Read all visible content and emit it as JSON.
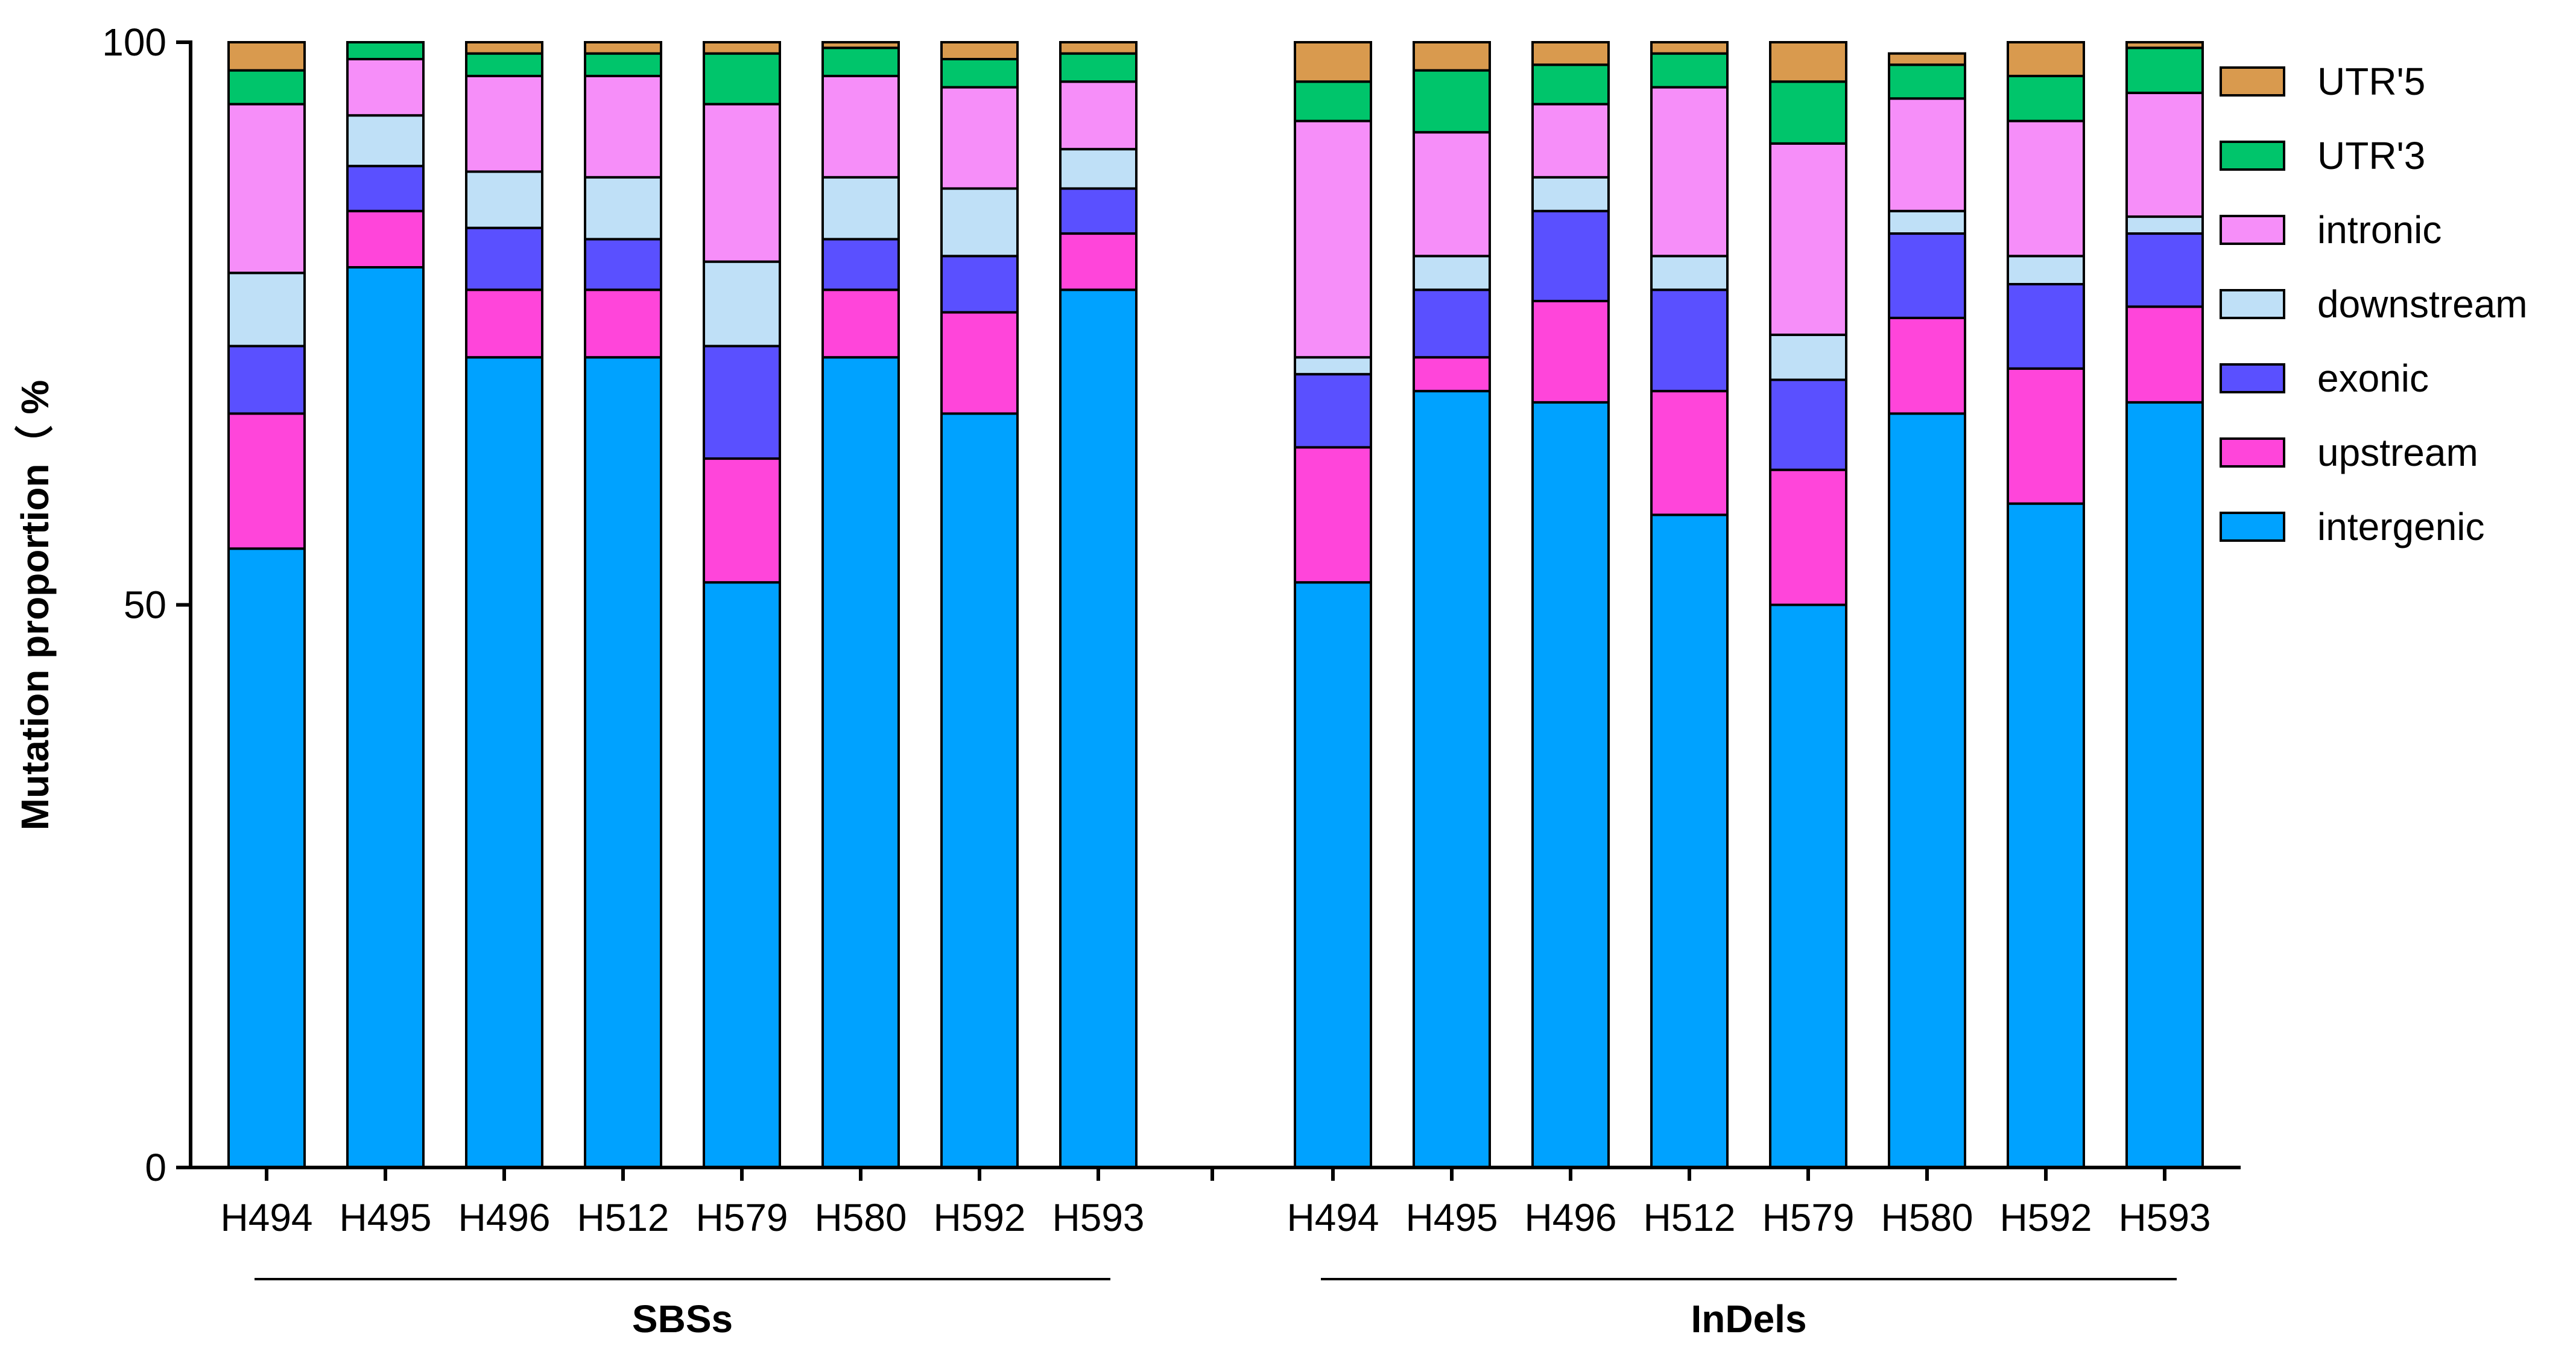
{
  "chart_data": {
    "type": "bar",
    "stacked": true,
    "ylabel": "Mutation proportion（ %",
    "ylim": [
      0,
      100
    ],
    "yticks": [
      0,
      50,
      100
    ],
    "legend_position": "right",
    "series_order": [
      "intergenic",
      "upstream",
      "exonic",
      "downstream",
      "intronic",
      "UTR'3",
      "UTR'5"
    ],
    "legend_order": [
      "UTR'5",
      "UTR'3",
      "intronic",
      "downstream",
      "exonic",
      "upstream",
      "intergenic"
    ],
    "colors": {
      "intergenic": "#00A2FF",
      "upstream": "#FF45DA",
      "exonic": "#5A50FF",
      "downstream": "#BFE0F7",
      "intronic": "#F68EF9",
      "UTR'3": "#00C56B",
      "UTR'5": "#D99A4E"
    },
    "groups": [
      {
        "label": "SBSs",
        "samples": [
          {
            "name": "H494",
            "values": [
              55,
              12,
              6,
              6.5,
              15,
              3,
              2.5
            ]
          },
          {
            "name": "H495",
            "values": [
              80,
              5,
              4,
              4.5,
              5,
              1.5,
              0
            ]
          },
          {
            "name": "H496",
            "values": [
              72,
              6,
              5.5,
              5,
              8.5,
              2,
              1
            ]
          },
          {
            "name": "H512",
            "values": [
              72,
              6,
              4.5,
              5.5,
              9,
              2,
              1
            ]
          },
          {
            "name": "H579",
            "values": [
              52,
              11,
              10,
              7.5,
              14,
              4.5,
              1
            ]
          },
          {
            "name": "H580",
            "values": [
              72,
              6,
              4.5,
              5.5,
              9,
              2.5,
              0.5
            ]
          },
          {
            "name": "H592",
            "values": [
              67,
              9,
              5,
              6,
              9,
              2.5,
              1.5
            ]
          },
          {
            "name": "H593",
            "values": [
              78,
              5,
              4,
              3.5,
              6,
              2.5,
              1
            ]
          }
        ]
      },
      {
        "label": "InDels",
        "samples": [
          {
            "name": "H494",
            "values": [
              52,
              12,
              6.5,
              1.5,
              21,
              3.5,
              3.5
            ]
          },
          {
            "name": "H495",
            "values": [
              69,
              3,
              6,
              3,
              11,
              5.5,
              2.5
            ]
          },
          {
            "name": "H496",
            "values": [
              68,
              9,
              8,
              3,
              6.5,
              3.5,
              2
            ]
          },
          {
            "name": "H512",
            "values": [
              58,
              11,
              9,
              3,
              15,
              3,
              1
            ]
          },
          {
            "name": "H579",
            "values": [
              50,
              12,
              8,
              4,
              17,
              5.5,
              3.5
            ]
          },
          {
            "name": "H580",
            "values": [
              67,
              8.5,
              7.5,
              2,
              10,
              3,
              1
            ]
          },
          {
            "name": "H592",
            "values": [
              59,
              12,
              7.5,
              2.5,
              12,
              4,
              3
            ]
          },
          {
            "name": "H593",
            "values": [
              68,
              8.5,
              6.5,
              1.5,
              11,
              4,
              0.5
            ]
          }
        ]
      }
    ]
  }
}
